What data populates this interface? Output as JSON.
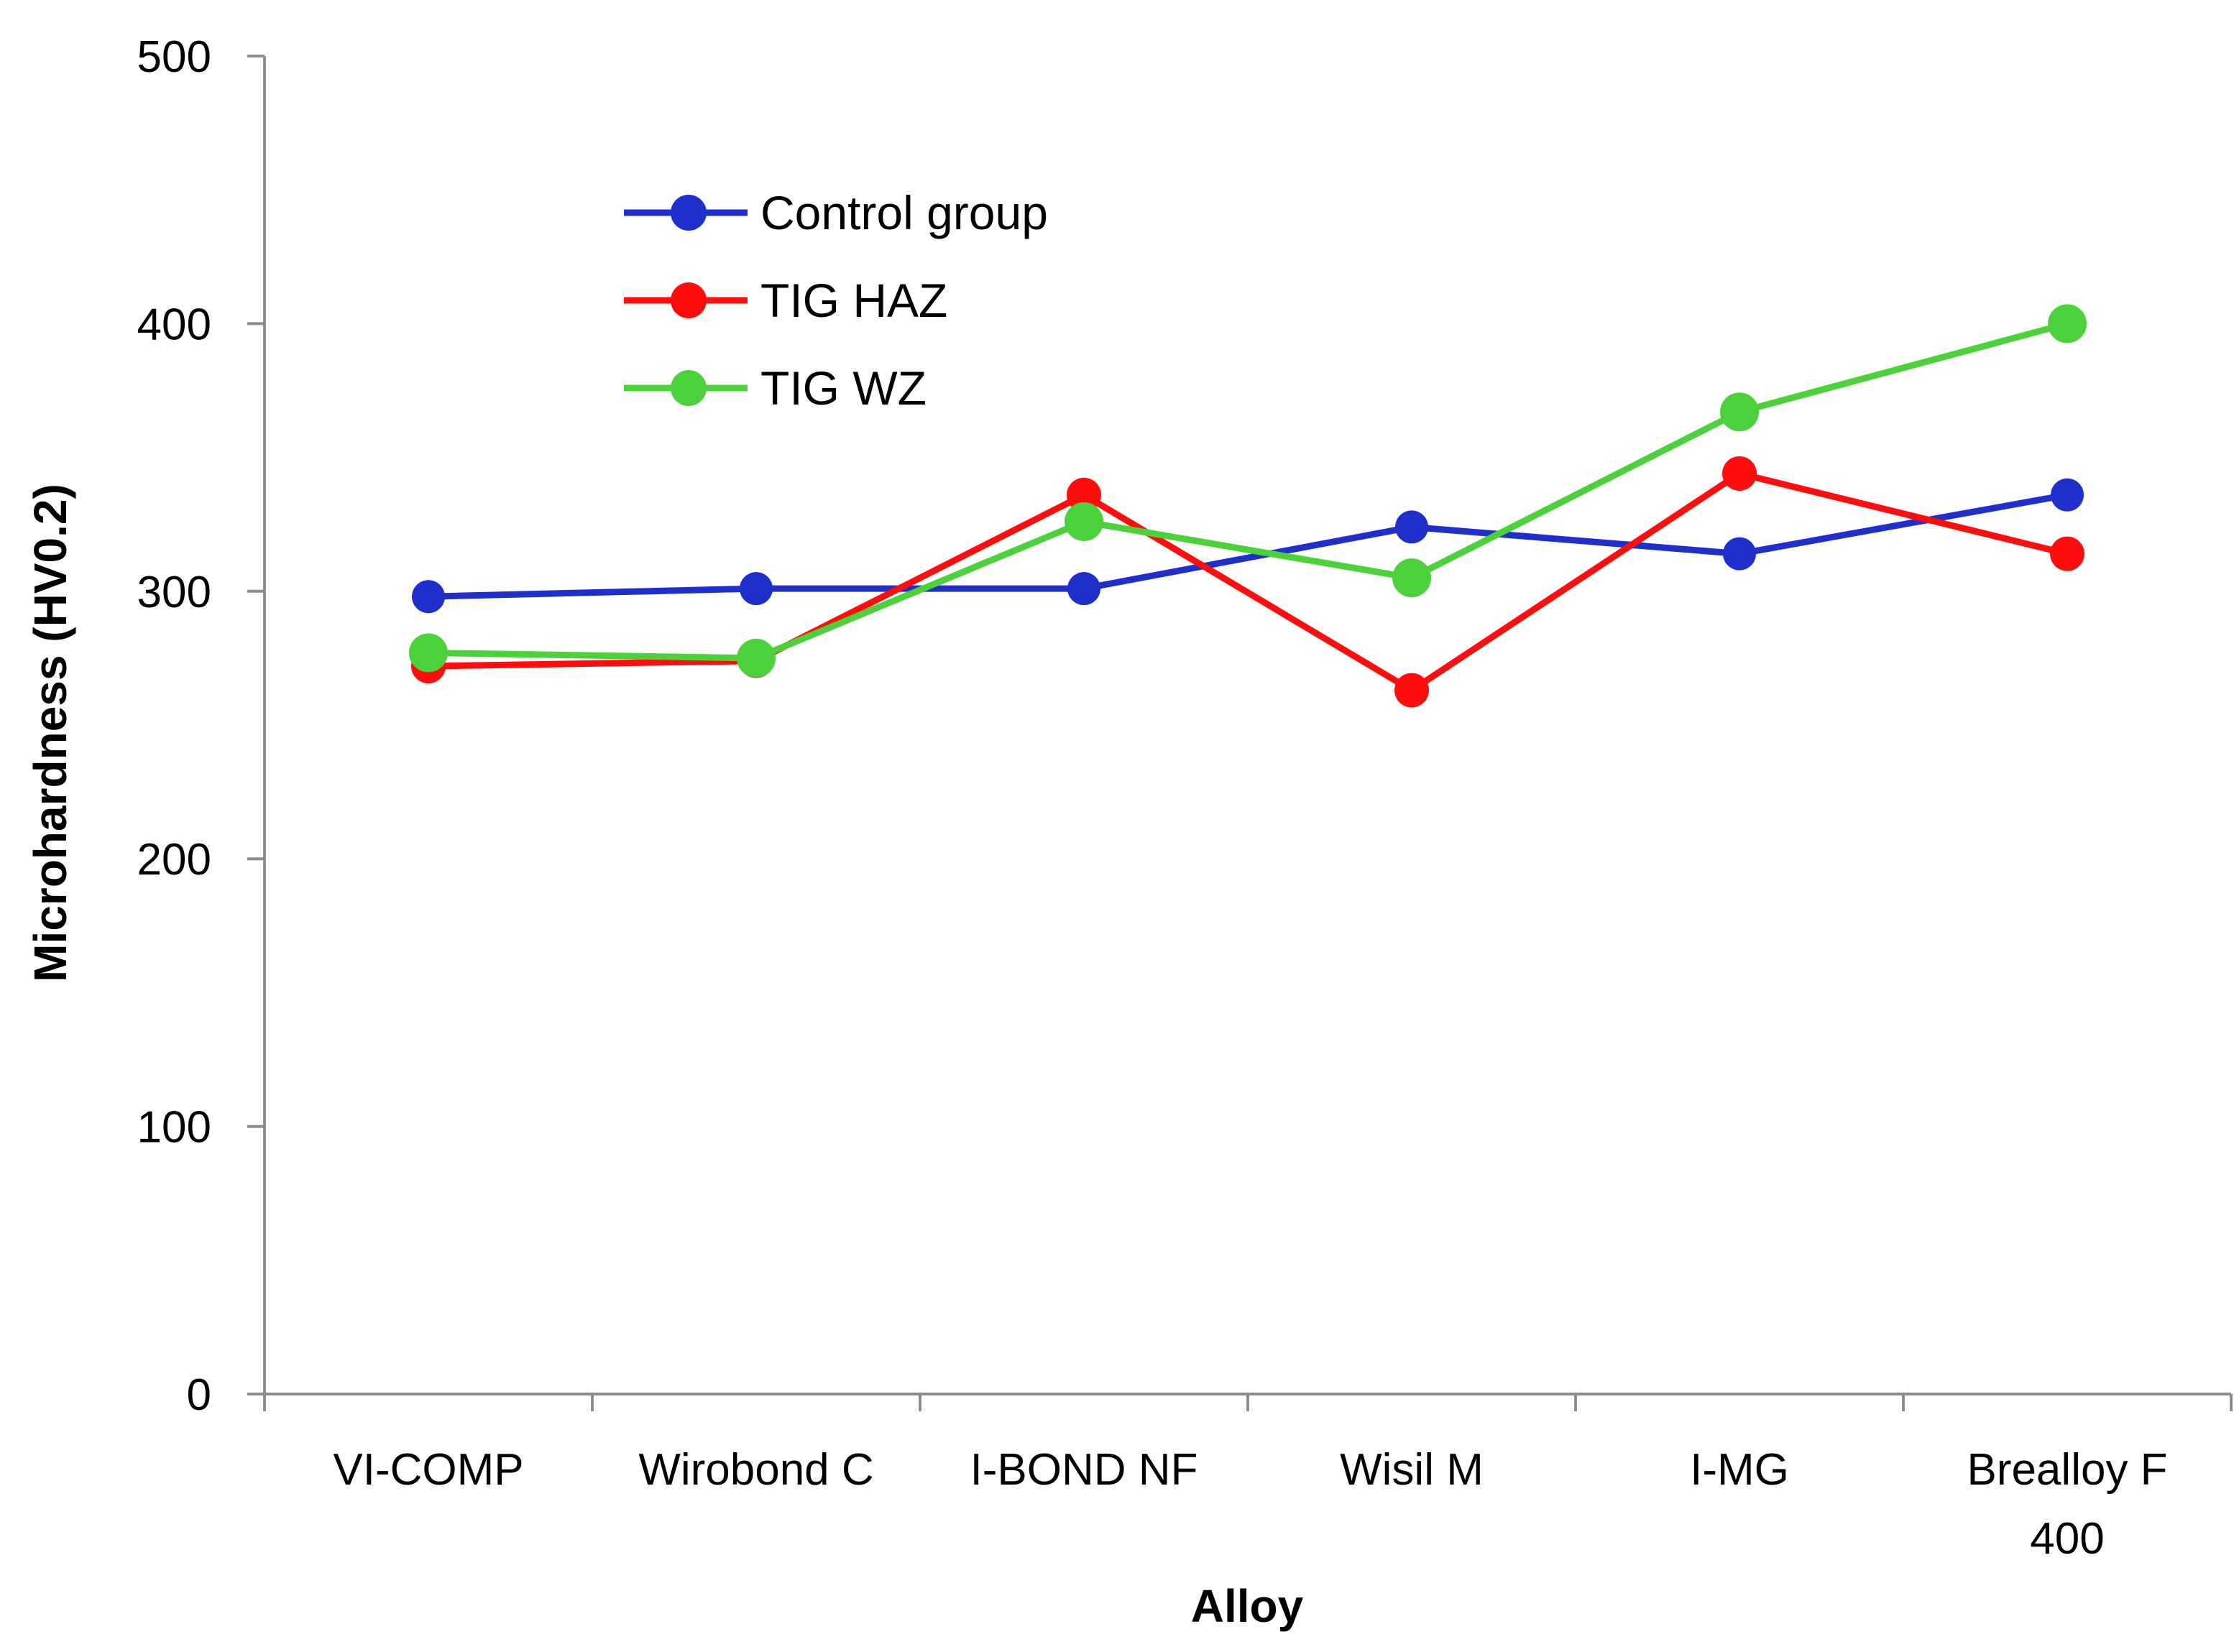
{
  "chart_data": {
    "type": "line",
    "title": "",
    "xlabel": "Alloy",
    "ylabel": "Microhardness (HV0.2)",
    "ylim": [
      0,
      500
    ],
    "yticks": [
      0,
      100,
      200,
      300,
      400,
      500
    ],
    "grid": false,
    "legend_position": "top-left",
    "categories": [
      [
        "VI-COMP"
      ],
      [
        "Wirobond C"
      ],
      [
        "I-BOND NF"
      ],
      [
        "Wisil M"
      ],
      [
        "I-MG"
      ],
      [
        "Brealloy F",
        "400"
      ]
    ],
    "series": [
      {
        "name": "Control group",
        "color": "#1f2fcc",
        "values": [
          298,
          301,
          301,
          324,
          314,
          336
        ]
      },
      {
        "name": "TIG HAZ",
        "color": "#ff0d0d",
        "values": [
          272,
          274,
          336,
          263,
          344,
          314
        ]
      },
      {
        "name": "TIG WZ",
        "color": "#4bd13a",
        "values": [
          277,
          275,
          326,
          305,
          367,
          400
        ]
      }
    ]
  }
}
